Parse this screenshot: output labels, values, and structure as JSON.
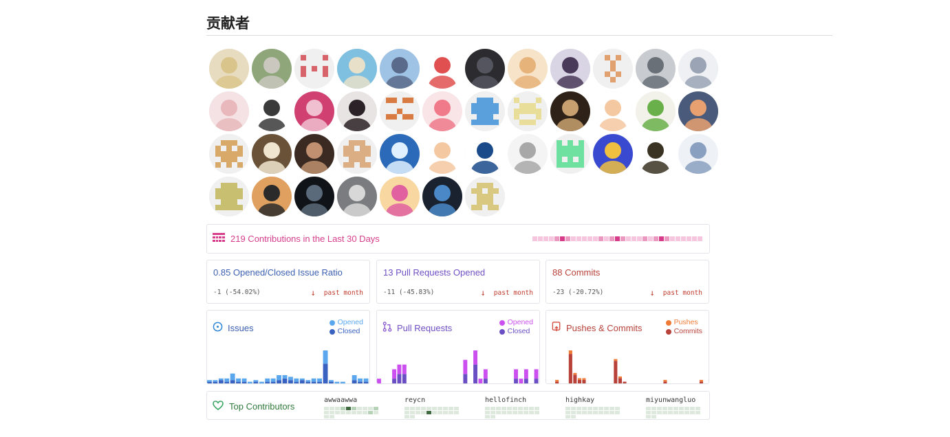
{
  "page": {
    "title": "贡献者"
  },
  "avatars": [
    {
      "name": "avatar",
      "bg": "#e8dcc0",
      "fg": "#d9c58c"
    },
    {
      "name": "avatar",
      "bg": "#8ea67a",
      "fg": "#c9c7be"
    },
    {
      "name": "identicon",
      "bg": "#f0f0f0",
      "fg": "#d9636b"
    },
    {
      "name": "avatar",
      "bg": "#7fc0e0",
      "fg": "#e8e0c8"
    },
    {
      "name": "avatar",
      "bg": "#9fc3e5",
      "fg": "#5a6a8a"
    },
    {
      "name": "avatar",
      "bg": "#ffffff",
      "fg": "#e05050"
    },
    {
      "name": "avatar",
      "bg": "#2c2c30",
      "fg": "#555560"
    },
    {
      "name": "avatar",
      "bg": "#f6e3c8",
      "fg": "#e6b37a"
    },
    {
      "name": "avatar",
      "bg": "#d9d5e4",
      "fg": "#4a3a5a"
    },
    {
      "name": "identicon",
      "bg": "#f0f0f0",
      "fg": "#e0a070"
    },
    {
      "name": "avatar",
      "bg": "#c8ccd0",
      "fg": "#6a7078"
    },
    {
      "name": "avatar",
      "bg": "#eef0f4",
      "fg": "#9aa4b4"
    },
    {
      "name": "avatar",
      "bg": "#f4e2e4",
      "fg": "#e8b8bc"
    },
    {
      "name": "avatar",
      "bg": "#ffffff",
      "fg": "#3a3a3a"
    },
    {
      "name": "avatar",
      "bg": "#d04070",
      "fg": "#f0c0d0"
    },
    {
      "name": "avatar",
      "bg": "#e9e4e4",
      "fg": "#2a2226"
    },
    {
      "name": "identicon",
      "bg": "#f0f0f0",
      "fg": "#d97c44"
    },
    {
      "name": "avatar",
      "bg": "#f9e4e8",
      "fg": "#f07a8a"
    },
    {
      "name": "identicon",
      "bg": "#f0f0f0",
      "fg": "#5aa0dc"
    },
    {
      "name": "identicon",
      "bg": "#f0f0f0",
      "fg": "#e8de9a"
    },
    {
      "name": "avatar",
      "bg": "#2e2218",
      "fg": "#c8a070"
    },
    {
      "name": "avatar",
      "bg": "#ffffff",
      "fg": "#f4c8a0"
    },
    {
      "name": "avatar",
      "bg": "#f2f2ea",
      "fg": "#6ab04a"
    },
    {
      "name": "avatar",
      "bg": "#4a5a7a",
      "fg": "#e8a070"
    },
    {
      "name": "identicon",
      "bg": "#f0f0f0",
      "fg": "#d9a96a"
    },
    {
      "name": "avatar",
      "bg": "#6a5238",
      "fg": "#f0e6d0"
    },
    {
      "name": "avatar",
      "bg": "#3a2a22",
      "fg": "#c09070"
    },
    {
      "name": "identicon",
      "bg": "#f0f0f0",
      "fg": "#dcae84"
    },
    {
      "name": "avatar",
      "bg": "#2a6ab8",
      "fg": "#e0f0ff"
    },
    {
      "name": "avatar",
      "bg": "#ffffff",
      "fg": "#f4c8a0"
    },
    {
      "name": "avatar",
      "bg": "#ffffff",
      "fg": "#1a4a8a"
    },
    {
      "name": "avatar",
      "bg": "#f4f4f4",
      "fg": "#a8a8a8"
    },
    {
      "name": "identicon",
      "bg": "#f0f0f0",
      "fg": "#6ee0a0"
    },
    {
      "name": "avatar",
      "bg": "#3a4ad0",
      "fg": "#f0c040"
    },
    {
      "name": "avatar",
      "bg": "#ffffff",
      "fg": "#3a3222"
    },
    {
      "name": "avatar",
      "bg": "#eef2f6",
      "fg": "#8aa0c0"
    },
    {
      "name": "identicon",
      "bg": "#f0f0f0",
      "fg": "#c8c070"
    },
    {
      "name": "avatar",
      "bg": "#e0a060",
      "fg": "#2a2a2a"
    },
    {
      "name": "avatar",
      "bg": "#101418",
      "fg": "#5a6a7a"
    },
    {
      "name": "avatar",
      "bg": "#7a7c80",
      "fg": "#d8d8d8"
    },
    {
      "name": "avatar",
      "bg": "#f8d8a0",
      "fg": "#e060a0"
    },
    {
      "name": "avatar",
      "bg": "#1a2230",
      "fg": "#4a88c8"
    },
    {
      "name": "identicon",
      "bg": "#f0f0f0",
      "fg": "#d8c880"
    }
  ],
  "activity": {
    "label": "219 Contributions in the Last 30 Days",
    "icon": "calendar-grid-icon",
    "accent": "#d63c8a",
    "levels": [
      1,
      1,
      1,
      1,
      2,
      3,
      2,
      1,
      1,
      1,
      1,
      1,
      2,
      1,
      2,
      3,
      2,
      1,
      1,
      1,
      2,
      1,
      2,
      3,
      2,
      1,
      1,
      1,
      1,
      1,
      1
    ]
  },
  "metrics": [
    {
      "label": "0.85 Opened/Closed Issue Ratio",
      "delta": "-1 (-54.02%)",
      "trend": "past month",
      "color": "#3b5fb0"
    },
    {
      "label": "13 Pull Requests Opened",
      "delta": "-11 (-45.83%)",
      "trend": "past month",
      "color": "#6f4fc4"
    },
    {
      "label": "88 Commits",
      "delta": "-23 (-20.72%)",
      "trend": "past month",
      "color": "#b8423a"
    }
  ],
  "charts": [
    {
      "title": "Issues",
      "icon": "issue-opened-icon",
      "color": "#3b5fb0",
      "legend": [
        {
          "label": "Opened",
          "color": "#5aa7ee"
        },
        {
          "label": "Closed",
          "color": "#3a62c0"
        }
      ]
    },
    {
      "title": "Pull Requests",
      "icon": "git-pull-request-icon",
      "color": "#6f4fc4",
      "legend": [
        {
          "label": "Opened",
          "color": "#cc4ff0"
        },
        {
          "label": "Closed",
          "color": "#6a4fc4"
        }
      ]
    },
    {
      "title": "Pushes & Commits",
      "icon": "repo-push-icon",
      "color": "#b8423a",
      "legend": [
        {
          "label": "Pushes",
          "color": "#ef7a36"
        },
        {
          "label": "Commits",
          "color": "#b8423a"
        }
      ]
    }
  ],
  "chart_data": [
    {
      "type": "bar",
      "title": "Issues",
      "series": [
        {
          "name": "Opened",
          "values": [
            1,
            1,
            1,
            2,
            4,
            2,
            2,
            1,
            1,
            1,
            2,
            2,
            3,
            2,
            2,
            2,
            1,
            1,
            2,
            2,
            8,
            1,
            1,
            1,
            0,
            3,
            2,
            2
          ]
        },
        {
          "name": "Closed",
          "values": [
            1,
            1,
            2,
            1,
            2,
            1,
            1,
            0,
            1,
            0,
            1,
            1,
            2,
            3,
            2,
            1,
            2,
            1,
            1,
            1,
            12,
            1,
            0,
            0,
            0,
            2,
            1,
            1
          ]
        }
      ]
    },
    {
      "type": "bar",
      "title": "Pull Requests",
      "series": [
        {
          "name": "Opened",
          "values": [
            1,
            0,
            0,
            2,
            2,
            2,
            0,
            0,
            0,
            0,
            0,
            0,
            0,
            0,
            0,
            0,
            0,
            3,
            0,
            3,
            1,
            2,
            0,
            0,
            0,
            0,
            0,
            2,
            1,
            2,
            0,
            2
          ]
        },
        {
          "name": "Closed",
          "values": [
            0,
            0,
            0,
            1,
            2,
            2,
            0,
            0,
            0,
            0,
            0,
            0,
            0,
            0,
            0,
            0,
            0,
            2,
            0,
            4,
            0,
            1,
            0,
            0,
            0,
            0,
            0,
            1,
            0,
            1,
            0,
            1
          ]
        }
      ]
    },
    {
      "type": "bar",
      "title": "Pushes & Commits",
      "series": [
        {
          "name": "Pushes",
          "values": [
            0,
            0,
            1,
            0,
            0,
            2,
            1,
            1,
            1,
            0,
            0,
            0,
            0,
            0,
            0,
            1,
            1,
            0,
            0,
            0,
            0,
            0,
            0,
            0,
            0,
            0,
            1,
            0,
            0,
            0,
            0,
            0,
            0,
            0,
            1,
            0
          ]
        },
        {
          "name": "Commits",
          "values": [
            0,
            0,
            1,
            0,
            0,
            17,
            5,
            2,
            2,
            0,
            0,
            0,
            0,
            0,
            0,
            13,
            3,
            1,
            0,
            0,
            0,
            0,
            0,
            0,
            0,
            0,
            1,
            0,
            0,
            0,
            0,
            0,
            0,
            0,
            1,
            0
          ]
        }
      ]
    }
  ],
  "top_contributors": {
    "title": "Top Contributors",
    "icon": "heart-icon",
    "people": [
      {
        "name": "awwaawwa",
        "levels": [
          1,
          1,
          1,
          2,
          3,
          2,
          1,
          1,
          1,
          2,
          1,
          1,
          1,
          1,
          1,
          1,
          1,
          1,
          2,
          1,
          1,
          1
        ]
      },
      {
        "name": "reycn",
        "levels": [
          1,
          1,
          1,
          1,
          1,
          1,
          1,
          1,
          1,
          1,
          1,
          1,
          1,
          1,
          3,
          1,
          1,
          1,
          1,
          1,
          1,
          1
        ]
      },
      {
        "name": "hellofinch",
        "levels": [
          1,
          1,
          1,
          1,
          1,
          1,
          1,
          1,
          1,
          1,
          1,
          1,
          1,
          1,
          1,
          1,
          1,
          1,
          1,
          1,
          1,
          1
        ]
      },
      {
        "name": "highkay",
        "levels": [
          1,
          1,
          1,
          1,
          1,
          1,
          1,
          1,
          1,
          1,
          1,
          1,
          1,
          1,
          1,
          1,
          1,
          1,
          1,
          1,
          1,
          1
        ]
      },
      {
        "name": "miyunwangluo",
        "levels": [
          1,
          1,
          1,
          1,
          1,
          1,
          1,
          1,
          1,
          1,
          1,
          1,
          1,
          1,
          1,
          1,
          1,
          1,
          1,
          1,
          1,
          1
        ]
      }
    ]
  }
}
